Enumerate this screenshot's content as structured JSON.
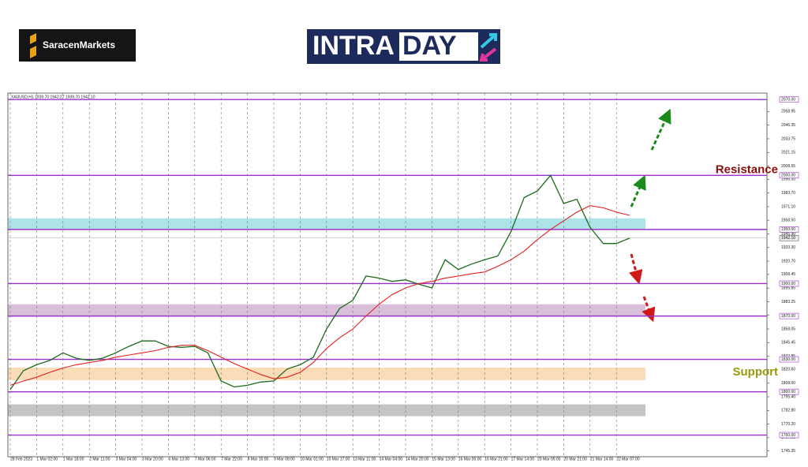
{
  "header": {
    "brand": "SaracenMarkets",
    "banner_left": "INTRA",
    "banner_right": "DAY"
  },
  "chart_data": {
    "type": "line",
    "symbol_info": "XAUUSD,H1 1939.70 1942.27 1939.70 1942.10",
    "categories": [
      "28 Feb 2023",
      null,
      "1 Mar 02:00",
      null,
      "1 Mar 18:00",
      null,
      "2 Mar 11:00",
      null,
      "3 Mar 04:00",
      null,
      "3 Mar 20:00",
      null,
      "6 Mar 13:00",
      null,
      "7 Mar 06:00",
      null,
      "7 Mar 22:00",
      null,
      "8 Mar 15:00",
      null,
      "9 Mar 08:00",
      null,
      "10 Mar 01:00",
      null,
      "10 Mar 17:00",
      null,
      "13 Mar 11:00",
      null,
      "14 Mar 04:00",
      null,
      "14 Mar 20:00",
      null,
      "15 Mar 13:00",
      null,
      "16 Mar 05:00",
      null,
      "16 Mar 21:00",
      null,
      "17 Mar 14:00",
      null,
      "20 Mar 05:00",
      null,
      "20 Mar 21:00",
      null,
      "21 Mar 14:00",
      null,
      "22 Mar 07:00",
      null
    ],
    "series": [
      {
        "color": "#1a6b1a",
        "values": [
          1802,
          1819.5,
          1825,
          1829,
          1836,
          1831,
          1829,
          1831,
          1836,
          1842,
          1847,
          1847,
          1842,
          1841,
          1842,
          1836,
          1810,
          1804.5,
          1806,
          1809,
          1810,
          1821,
          1825,
          1832,
          1858,
          1877,
          1884.5,
          1907,
          1905,
          1902,
          1903.5,
          1899.5,
          1896,
          1922,
          1913,
          1918,
          1922,
          1925.5,
          1948,
          1979.5,
          1985.5,
          2000,
          1974,
          1978,
          1952,
          1937,
          1937,
          1942
        ]
      },
      {
        "color": "#e02020",
        "values": [
          1806,
          1810,
          1813.5,
          1818,
          1822,
          1825,
          1827,
          1829,
          1832,
          1834,
          1836,
          1838,
          1841,
          1843,
          1843,
          1838,
          1832,
          1826,
          1821,
          1816,
          1812,
          1813.5,
          1818,
          1827,
          1840,
          1850,
          1858,
          1870,
          1881,
          1890,
          1896,
          1900,
          1902,
          1905,
          1907,
          1909,
          1910.7,
          1916,
          1922,
          1930,
          1940.6,
          1950,
          1958,
          1966,
          1972,
          1970,
          1966,
          1963
        ]
      }
    ],
    "ylim": [
      1740,
      2076
    ],
    "yticks": [
      2058.95,
      2046.35,
      2033.75,
      2021.15,
      2008.55,
      {
        "value": 1996.3,
        "label": "1996.30"
      },
      {
        "value": 1983.7,
        "label": "1983.70"
      },
      {
        "value": 1971.1,
        "label": "1971.10"
      },
      {
        "value": 1958.5,
        "label": "1958.50"
      },
      {
        "value": 1945.9,
        "label": "1945.90"
      },
      {
        "value": 1933.3,
        "label": "1933.30"
      },
      {
        "value": 1920.7,
        "label": "1920.70"
      },
      1908.45,
      1895.85,
      1883.25,
      1870.65,
      1858.05,
      1845.45,
      1832.85,
      {
        "value": 1820.6,
        "label": "1820.60"
      },
      {
        "value": 1808,
        "label": "1808.00"
      },
      {
        "value": 1795.4,
        "label": "1795.40"
      },
      {
        "value": 1782.8,
        "label": "1782.80"
      },
      {
        "value": 1770.2,
        "label": "1770.20"
      },
      {
        "value": 1757.6,
        "label": "1757.60"
      },
      1745.35
    ],
    "levels": [
      {
        "value": 2070,
        "label": "2070.00"
      },
      {
        "value": 2000,
        "label": "2000.00"
      },
      {
        "value": 1950,
        "label": "1950.00"
      },
      {
        "value": 1900,
        "label": "1900.00"
      },
      {
        "value": 1870,
        "label": "1870.00"
      },
      {
        "value": 1830,
        "label": "1830.00"
      },
      {
        "value": 1800,
        "label": "1800.00"
      },
      {
        "value": 1760,
        "label": "1760.00"
      }
    ],
    "level_color": "#9933cc",
    "current_price": {
      "value": 1942.1,
      "label": "1942.10"
    },
    "zones": [
      {
        "range": [
          1950.2,
          1960.3
        ],
        "color": "#aee3ea"
      },
      {
        "range": [
          1870,
          1880.9
        ],
        "color": "#d9bfd9"
      },
      {
        "range": [
          1810.8,
          1822.4
        ],
        "color": "#fbdcb8"
      },
      {
        "range": [
          1777.5,
          1788.4
        ],
        "color": "#c4c4c4"
      }
    ],
    "annotations": [
      {
        "text": "Resistance",
        "value": 2005,
        "color": "#8b0d0d"
      },
      {
        "text": "Support",
        "value": 1818,
        "color": "#9a9a10"
      }
    ],
    "grid": true
  }
}
